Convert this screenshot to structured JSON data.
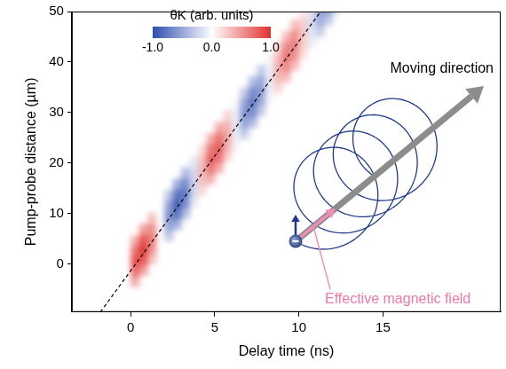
{
  "chart_data": {
    "type": "heatmap",
    "xlabel": "Delay time (ns)",
    "ylabel": "Pump-probe distance (µm)",
    "xlim": [
      -3.5,
      22
    ],
    "ylim": [
      -9.5,
      50
    ],
    "xticks": [
      0,
      5,
      10,
      15
    ],
    "yticks": [
      0,
      10,
      20,
      30,
      40,
      50
    ],
    "grid": false,
    "cells": [
      [
        0.25,
        -3.4,
        0.42
      ],
      [
        0.25,
        -1.4,
        0.71
      ],
      [
        0.25,
        0.6,
        0.84
      ],
      [
        0.25,
        2.6,
        0.71
      ],
      [
        0.25,
        4.6,
        0.42
      ],
      [
        0.75,
        -1.1,
        0.49
      ],
      [
        0.75,
        0.9,
        0.82
      ],
      [
        0.75,
        2.9,
        0.97
      ],
      [
        0.75,
        4.9,
        0.82
      ],
      [
        0.75,
        6.9,
        0.49
      ],
      [
        1.25,
        1.1,
        0.32
      ],
      [
        1.25,
        3.1,
        0.54
      ],
      [
        1.25,
        5.1,
        0.63
      ],
      [
        1.25,
        7.1,
        0.54
      ],
      [
        1.25,
        9.1,
        0.32
      ],
      [
        2.25,
        5.6,
        -0.31
      ],
      [
        2.25,
        7.6,
        -0.52
      ],
      [
        2.25,
        9.6,
        -0.61
      ],
      [
        2.25,
        11.6,
        -0.52
      ],
      [
        2.25,
        13.6,
        -0.31
      ],
      [
        2.75,
        7.9,
        -0.46
      ],
      [
        2.75,
        9.9,
        -0.77
      ],
      [
        2.75,
        11.9,
        -0.91
      ],
      [
        2.75,
        13.9,
        -0.77
      ],
      [
        2.75,
        15.9,
        -0.46
      ],
      [
        3.25,
        10.1,
        -0.38
      ],
      [
        3.25,
        12.1,
        -0.65
      ],
      [
        3.25,
        14.1,
        -0.76
      ],
      [
        3.25,
        16.1,
        -0.65
      ],
      [
        3.25,
        18.1,
        -0.38
      ],
      [
        3.75,
        12.4,
        -0.13
      ],
      [
        3.75,
        14.4,
        -0.21
      ],
      [
        3.75,
        16.4,
        -0.25
      ],
      [
        3.75,
        18.4,
        -0.21
      ],
      [
        3.75,
        20.4,
        -0.13
      ],
      [
        4.25,
        14.6,
        0.18
      ],
      [
        4.25,
        16.6,
        0.31
      ],
      [
        4.25,
        18.6,
        0.36
      ],
      [
        4.25,
        20.6,
        0.31
      ],
      [
        4.25,
        22.6,
        0.18
      ],
      [
        4.75,
        16.9,
        0.39
      ],
      [
        4.75,
        18.9,
        0.65
      ],
      [
        4.75,
        20.9,
        0.77
      ],
      [
        4.75,
        22.9,
        0.65
      ],
      [
        4.75,
        24.9,
        0.39
      ],
      [
        5.25,
        19.1,
        0.4
      ],
      [
        5.25,
        21.1,
        0.68
      ],
      [
        5.25,
        23.1,
        0.8
      ],
      [
        5.25,
        25.1,
        0.68
      ],
      [
        5.25,
        27.1,
        0.4
      ],
      [
        5.75,
        21.4,
        0.22
      ],
      [
        5.75,
        23.4,
        0.37
      ],
      [
        5.75,
        25.4,
        0.44
      ],
      [
        5.75,
        27.4,
        0.37
      ],
      [
        5.75,
        29.4,
        0.22
      ],
      [
        6.25,
        23.6,
        -0.06
      ],
      [
        6.25,
        25.6,
        -0.1
      ],
      [
        6.25,
        27.6,
        -0.12
      ],
      [
        6.25,
        29.6,
        -0.1
      ],
      [
        6.25,
        31.6,
        -0.06
      ],
      [
        6.75,
        25.9,
        -0.3
      ],
      [
        6.75,
        27.9,
        -0.51
      ],
      [
        6.75,
        29.9,
        -0.6
      ],
      [
        6.75,
        31.9,
        -0.51
      ],
      [
        6.75,
        33.9,
        -0.3
      ],
      [
        7.25,
        28.1,
        -0.39
      ],
      [
        7.25,
        30.1,
        -0.65
      ],
      [
        7.25,
        32.1,
        -0.77
      ],
      [
        7.25,
        34.1,
        -0.65
      ],
      [
        7.25,
        36.1,
        -0.39
      ],
      [
        7.75,
        30.4,
        -0.29
      ],
      [
        7.75,
        32.4,
        -0.48
      ],
      [
        7.75,
        34.4,
        -0.57
      ],
      [
        7.75,
        36.4,
        -0.48
      ],
      [
        7.75,
        38.4,
        -0.29
      ],
      [
        8.25,
        32.6,
        -0.05
      ],
      [
        8.25,
        34.6,
        -0.09
      ],
      [
        8.25,
        36.6,
        -0.1
      ],
      [
        8.25,
        38.6,
        -0.09
      ],
      [
        8.25,
        40.6,
        -0.05
      ],
      [
        8.75,
        34.9,
        0.2
      ],
      [
        8.75,
        36.9,
        0.33
      ],
      [
        8.75,
        38.9,
        0.39
      ],
      [
        8.75,
        40.9,
        0.33
      ],
      [
        8.75,
        42.9,
        0.2
      ],
      [
        9.25,
        37.1,
        0.34
      ],
      [
        9.25,
        39.1,
        0.57
      ],
      [
        9.25,
        41.1,
        0.67
      ],
      [
        9.25,
        43.1,
        0.57
      ],
      [
        9.25,
        45.1,
        0.34
      ],
      [
        9.75,
        39.4,
        0.32
      ],
      [
        9.75,
        41.4,
        0.54
      ],
      [
        9.75,
        43.4,
        0.63
      ],
      [
        9.75,
        45.4,
        0.54
      ],
      [
        9.75,
        47.4,
        0.32
      ],
      [
        10.25,
        41.6,
        0.14
      ],
      [
        10.25,
        43.6,
        0.24
      ],
      [
        10.25,
        45.6,
        0.28
      ],
      [
        10.25,
        47.6,
        0.24
      ],
      [
        10.25,
        49.6,
        0.14
      ],
      [
        10.75,
        43.9,
        -0.09
      ],
      [
        10.75,
        45.9,
        -0.15
      ],
      [
        10.75,
        47.9,
        -0.18
      ],
      [
        10.75,
        49.9,
        -0.15
      ],
      [
        11.25,
        46.1,
        -0.27
      ],
      [
        11.25,
        48.1,
        -0.46
      ],
      [
        11.25,
        50.1,
        -0.54
      ],
      [
        11.75,
        48.4,
        -0.31
      ],
      [
        11.75,
        50.4,
        -0.52
      ],
      [
        12.25,
        50.6,
        -0.2
      ]
    ],
    "colorbar": {
      "title": "θK (arb. units)",
      "range": [
        -1,
        1
      ],
      "ticks": [
        {
          "value": -1,
          "label": "-1.0"
        },
        {
          "value": 0,
          "label": "0.0"
        },
        {
          "value": 1,
          "label": "1.0"
        }
      ],
      "colors": [
        "#2f4eb0",
        "#ffffff",
        "#e0312f"
      ]
    },
    "reference_line": {
      "x": [
        -1.8,
        11.3
      ],
      "y": [
        -9.5,
        50
      ],
      "line_style": "dashed",
      "color": "#000000"
    },
    "annotations": [
      "Moving direction",
      "Effective magnetic field"
    ]
  }
}
